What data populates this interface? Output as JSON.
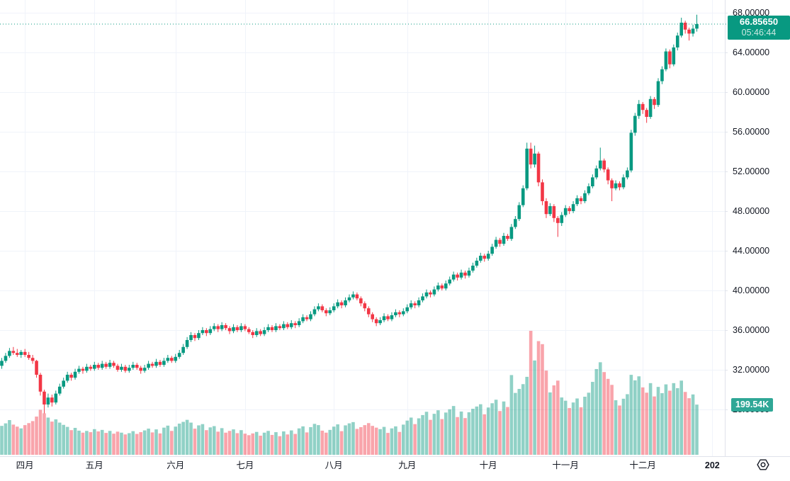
{
  "price_axis": {
    "tick_labels": [
      "68.00000",
      "64.00000",
      "60.00000",
      "56.00000",
      "52.00000",
      "48.00000",
      "44.00000",
      "40.00000",
      "36.00000",
      "32.00000",
      "28.00000"
    ],
    "tick_values": [
      68,
      64,
      60,
      56,
      52,
      48,
      44,
      40,
      36,
      32,
      28
    ],
    "last_price_label": "66.85650",
    "countdown": "05:46:44",
    "volume_label": "199.54K"
  },
  "colors": {
    "up": "#089981",
    "down": "#f23645",
    "volume_up": "rgba(8,153,129,0.45)",
    "volume_down": "rgba(242,54,69,0.45)",
    "grid": "#f0f3fa",
    "separator": "#e0e3eb",
    "axis_text": "#131722",
    "price_line": "#089981",
    "badge_price_bg": "#089981",
    "badge_countdown_text": "#cdeae3",
    "badge_volume_bg": "#2fa796"
  },
  "chart_data": {
    "type": "candlestick",
    "panes": [
      "price",
      "volume"
    ],
    "y_axis": {
      "min": 28,
      "max": 68,
      "tick_step": 4,
      "price_decimals": 5
    },
    "last_price": 66.8565,
    "last_bar_volume_k": 199.54,
    "x_ticks": [
      {
        "label": "四月",
        "index": 6
      },
      {
        "label": "五月",
        "index": 24
      },
      {
        "label": "六月",
        "index": 45
      },
      {
        "label": "七月",
        "index": 63
      },
      {
        "label": "八月",
        "index": 86
      },
      {
        "label": "九月",
        "index": 105
      },
      {
        "label": "十月",
        "index": 126
      },
      {
        "label": "十一月",
        "index": 146
      },
      {
        "label": "十二月",
        "index": 166
      },
      {
        "label": "202",
        "index": 184,
        "bold": true
      }
    ],
    "candles": {
      "columns": [
        "open",
        "high",
        "low",
        "close",
        "volume_k"
      ],
      "rows": [
        [
          32.4,
          33.2,
          32.1,
          32.9,
          115
        ],
        [
          32.9,
          33.7,
          32.7,
          33.4,
          125
        ],
        [
          33.4,
          34.2,
          33.2,
          33.9,
          138
        ],
        [
          33.9,
          34.3,
          33.5,
          33.7,
          120
        ],
        [
          33.7,
          34.1,
          33.3,
          33.5,
          112
        ],
        [
          33.5,
          34.0,
          33.2,
          33.8,
          105
        ],
        [
          33.8,
          34.1,
          33.3,
          33.5,
          118
        ],
        [
          33.5,
          33.8,
          33.0,
          33.2,
          126
        ],
        [
          33.2,
          33.5,
          32.6,
          32.9,
          134
        ],
        [
          32.9,
          33.0,
          31.2,
          31.5,
          152
        ],
        [
          31.5,
          31.7,
          29.4,
          29.8,
          179
        ],
        [
          29.8,
          30.0,
          27.6,
          28.5,
          165
        ],
        [
          28.5,
          29.6,
          28.2,
          29.2,
          148
        ],
        [
          29.2,
          29.5,
          28.3,
          28.7,
          132
        ],
        [
          28.7,
          29.9,
          28.5,
          29.6,
          141
        ],
        [
          29.6,
          30.6,
          29.4,
          30.3,
          128
        ],
        [
          30.3,
          31.2,
          30.1,
          30.9,
          119
        ],
        [
          30.9,
          31.8,
          30.7,
          31.5,
          111
        ],
        [
          31.5,
          31.7,
          30.9,
          31.2,
          98
        ],
        [
          31.2,
          32.1,
          31.0,
          31.8,
          107
        ],
        [
          31.8,
          32.4,
          31.6,
          32.1,
          96
        ],
        [
          32.1,
          32.3,
          31.6,
          31.9,
          88
        ],
        [
          31.9,
          32.6,
          31.7,
          32.3,
          95
        ],
        [
          32.3,
          32.5,
          31.9,
          32.1,
          90
        ],
        [
          32.1,
          32.8,
          31.9,
          32.5,
          102
        ],
        [
          32.5,
          32.7,
          32.0,
          32.2,
          93
        ],
        [
          32.2,
          32.9,
          32.0,
          32.6,
          99
        ],
        [
          32.6,
          32.8,
          32.1,
          32.3,
          87
        ],
        [
          32.3,
          33.0,
          32.1,
          32.7,
          95
        ],
        [
          32.7,
          32.9,
          32.2,
          32.4,
          84
        ],
        [
          32.4,
          32.6,
          31.8,
          32.0,
          92
        ],
        [
          32.0,
          32.6,
          31.8,
          32.3,
          88
        ],
        [
          32.3,
          32.5,
          31.7,
          31.9,
          81
        ],
        [
          31.9,
          32.5,
          31.7,
          32.2,
          86
        ],
        [
          32.2,
          32.8,
          32.0,
          32.5,
          94
        ],
        [
          32.5,
          32.7,
          32.0,
          32.2,
          83
        ],
        [
          32.2,
          32.4,
          31.6,
          31.9,
          90
        ],
        [
          31.9,
          32.5,
          31.7,
          32.2,
          97
        ],
        [
          32.2,
          32.9,
          32.0,
          32.6,
          104
        ],
        [
          32.6,
          32.8,
          32.2,
          32.4,
          89
        ],
        [
          32.4,
          33.1,
          32.2,
          32.8,
          101
        ],
        [
          32.8,
          33.0,
          32.3,
          32.5,
          85
        ],
        [
          32.5,
          33.2,
          32.3,
          32.9,
          108
        ],
        [
          32.9,
          33.5,
          32.7,
          33.2,
          116
        ],
        [
          33.2,
          33.4,
          32.7,
          32.9,
          95
        ],
        [
          32.9,
          33.6,
          32.7,
          33.3,
          112
        ],
        [
          33.3,
          34.0,
          33.1,
          33.7,
          124
        ],
        [
          33.7,
          34.6,
          33.5,
          34.3,
          131
        ],
        [
          34.3,
          35.3,
          34.1,
          35.0,
          139
        ],
        [
          35.0,
          35.8,
          34.8,
          35.5,
          128
        ],
        [
          35.5,
          35.7,
          34.9,
          35.2,
          104
        ],
        [
          35.2,
          36.0,
          35.0,
          35.7,
          117
        ],
        [
          35.7,
          36.3,
          35.5,
          36.0,
          122
        ],
        [
          36.0,
          36.2,
          35.4,
          35.7,
          98
        ],
        [
          35.7,
          36.4,
          35.5,
          36.1,
          109
        ],
        [
          36.1,
          36.7,
          35.9,
          36.4,
          114
        ],
        [
          36.4,
          36.6,
          35.8,
          36.1,
          92
        ],
        [
          36.1,
          36.8,
          35.9,
          36.5,
          106
        ],
        [
          36.5,
          36.7,
          36.0,
          36.2,
          88
        ],
        [
          36.2,
          36.4,
          35.6,
          35.9,
          95
        ],
        [
          35.9,
          36.6,
          35.7,
          36.3,
          101
        ],
        [
          36.3,
          36.5,
          35.8,
          36.0,
          86
        ],
        [
          36.0,
          36.7,
          35.8,
          36.4,
          98
        ],
        [
          36.4,
          36.6,
          35.9,
          36.1,
          84
        ],
        [
          36.1,
          36.3,
          35.6,
          35.8,
          78
        ],
        [
          35.8,
          36.0,
          35.2,
          35.5,
          85
        ],
        [
          35.5,
          36.2,
          35.3,
          35.9,
          91
        ],
        [
          35.9,
          36.1,
          35.4,
          35.6,
          76
        ],
        [
          35.6,
          36.3,
          35.4,
          36.0,
          88
        ],
        [
          36.0,
          36.6,
          35.8,
          36.3,
          95
        ],
        [
          36.3,
          36.5,
          35.8,
          36.0,
          79
        ],
        [
          36.0,
          36.7,
          35.8,
          36.4,
          90
        ],
        [
          36.4,
          36.6,
          36.0,
          36.2,
          74
        ],
        [
          36.2,
          36.9,
          36.0,
          36.6,
          93
        ],
        [
          36.6,
          36.8,
          36.1,
          36.3,
          81
        ],
        [
          36.3,
          37.0,
          36.1,
          36.7,
          97
        ],
        [
          36.7,
          36.9,
          36.2,
          36.5,
          83
        ],
        [
          36.5,
          37.2,
          36.3,
          36.9,
          105
        ],
        [
          36.9,
          37.6,
          36.7,
          37.3,
          113
        ],
        [
          37.3,
          37.5,
          36.9,
          37.1,
          89
        ],
        [
          37.1,
          37.9,
          36.9,
          37.6,
          110
        ],
        [
          37.6,
          38.4,
          37.4,
          38.1,
          123
        ],
        [
          38.1,
          38.7,
          37.9,
          38.4,
          118
        ],
        [
          38.4,
          38.6,
          37.8,
          38.0,
          96
        ],
        [
          38.0,
          38.2,
          37.4,
          37.7,
          88
        ],
        [
          37.7,
          38.3,
          37.5,
          38.0,
          99
        ],
        [
          38.0,
          38.7,
          37.8,
          38.4,
          112
        ],
        [
          38.4,
          39.1,
          38.2,
          38.8,
          121
        ],
        [
          38.8,
          39.0,
          38.2,
          38.5,
          94
        ],
        [
          38.5,
          39.3,
          38.3,
          39.0,
          117
        ],
        [
          39.0,
          39.6,
          38.8,
          39.3,
          125
        ],
        [
          39.3,
          39.9,
          39.1,
          39.6,
          130
        ],
        [
          39.6,
          39.8,
          39.0,
          39.2,
          103
        ],
        [
          39.2,
          39.4,
          38.4,
          38.7,
          110
        ],
        [
          38.7,
          38.9,
          37.9,
          38.2,
          118
        ],
        [
          38.2,
          38.4,
          37.3,
          37.6,
          126
        ],
        [
          37.6,
          37.8,
          36.8,
          37.1,
          115
        ],
        [
          37.1,
          37.3,
          36.4,
          36.7,
          108
        ],
        [
          36.7,
          37.3,
          36.5,
          37.0,
          102
        ],
        [
          37.0,
          37.7,
          36.8,
          37.4,
          111
        ],
        [
          37.4,
          37.6,
          36.9,
          37.1,
          87
        ],
        [
          37.1,
          37.8,
          36.9,
          37.5,
          105
        ],
        [
          37.5,
          38.1,
          37.3,
          37.8,
          113
        ],
        [
          37.8,
          38.0,
          37.3,
          37.6,
          91
        ],
        [
          37.6,
          38.2,
          37.4,
          37.9,
          120
        ],
        [
          37.9,
          38.6,
          37.7,
          38.3,
          136
        ],
        [
          38.3,
          39.0,
          38.1,
          38.7,
          148
        ],
        [
          38.7,
          38.9,
          38.2,
          38.5,
          122
        ],
        [
          38.5,
          39.3,
          38.3,
          39.0,
          145
        ],
        [
          39.0,
          39.7,
          38.8,
          39.4,
          158
        ],
        [
          39.4,
          40.1,
          39.2,
          39.8,
          171
        ],
        [
          39.8,
          40.0,
          39.3,
          39.6,
          139
        ],
        [
          39.6,
          40.4,
          39.4,
          40.1,
          163
        ],
        [
          40.1,
          40.8,
          39.9,
          40.5,
          177
        ],
        [
          40.5,
          40.7,
          40.0,
          40.2,
          142
        ],
        [
          40.2,
          41.0,
          40.0,
          40.7,
          168
        ],
        [
          40.7,
          41.4,
          40.5,
          41.1,
          181
        ],
        [
          41.1,
          41.9,
          40.9,
          41.6,
          194
        ],
        [
          41.6,
          41.8,
          41.0,
          41.3,
          150
        ],
        [
          41.3,
          42.1,
          41.1,
          41.8,
          172
        ],
        [
          41.8,
          42.0,
          41.2,
          41.5,
          146
        ],
        [
          41.5,
          42.3,
          41.3,
          42.0,
          169
        ],
        [
          42.0,
          42.8,
          41.8,
          42.5,
          183
        ],
        [
          42.5,
          43.3,
          42.3,
          43.0,
          192
        ],
        [
          43.0,
          43.8,
          42.8,
          43.5,
          201
        ],
        [
          43.5,
          43.7,
          42.9,
          43.2,
          161
        ],
        [
          43.2,
          44.0,
          43.0,
          43.7,
          188
        ],
        [
          43.7,
          44.7,
          43.5,
          44.4,
          205
        ],
        [
          44.4,
          45.4,
          44.2,
          45.1,
          219
        ],
        [
          45.1,
          45.3,
          44.4,
          44.7,
          174
        ],
        [
          44.7,
          45.8,
          44.5,
          45.5,
          212
        ],
        [
          45.5,
          45.7,
          45.0,
          45.2,
          190
        ],
        [
          45.2,
          46.7,
          45.0,
          46.4,
          317
        ],
        [
          46.4,
          47.5,
          46.2,
          47.2,
          246
        ],
        [
          47.2,
          48.9,
          47.0,
          48.6,
          262
        ],
        [
          48.6,
          50.6,
          48.4,
          50.3,
          281
        ],
        [
          50.3,
          54.9,
          50.1,
          54.3,
          310
        ],
        [
          54.3,
          54.9,
          52.3,
          52.7,
          493
        ],
        [
          52.7,
          54.6,
          52.4,
          53.8,
          375
        ],
        [
          53.8,
          54.0,
          50.5,
          50.9,
          452
        ],
        [
          50.9,
          51.2,
          48.6,
          49.0,
          440
        ],
        [
          49.0,
          49.3,
          47.3,
          47.7,
          335
        ],
        [
          47.7,
          48.8,
          47.5,
          48.5,
          248
        ],
        [
          48.5,
          48.7,
          46.9,
          47.3,
          276
        ],
        [
          47.3,
          47.5,
          45.4,
          46.8,
          295
        ],
        [
          46.8,
          47.9,
          46.5,
          47.6,
          228
        ],
        [
          47.6,
          48.6,
          47.4,
          48.3,
          215
        ],
        [
          48.3,
          48.5,
          47.7,
          48.0,
          186
        ],
        [
          48.0,
          49.0,
          47.8,
          48.7,
          208
        ],
        [
          48.7,
          49.6,
          48.5,
          49.3,
          224
        ],
        [
          49.3,
          49.5,
          48.7,
          49.0,
          189
        ],
        [
          49.0,
          50.1,
          48.8,
          49.8,
          231
        ],
        [
          49.8,
          50.8,
          49.6,
          50.5,
          247
        ],
        [
          50.5,
          51.7,
          50.3,
          51.4,
          290
        ],
        [
          51.4,
          52.6,
          51.2,
          52.3,
          341
        ],
        [
          52.3,
          54.4,
          52.1,
          53.1,
          368
        ],
        [
          53.1,
          53.3,
          51.9,
          52.2,
          329
        ],
        [
          52.2,
          52.4,
          50.7,
          51.1,
          302
        ],
        [
          51.1,
          51.3,
          49.0,
          50.3,
          278
        ],
        [
          50.3,
          51.1,
          50.1,
          50.8,
          217
        ],
        [
          50.8,
          51.0,
          50.1,
          50.4,
          196
        ],
        [
          50.4,
          51.7,
          50.2,
          51.4,
          223
        ],
        [
          51.4,
          52.4,
          51.2,
          52.1,
          241
        ],
        [
          52.1,
          56.2,
          51.9,
          55.9,
          318
        ],
        [
          55.9,
          57.9,
          55.6,
          57.6,
          296
        ],
        [
          57.6,
          59.2,
          57.3,
          58.8,
          312
        ],
        [
          58.8,
          59.0,
          57.8,
          58.2,
          268
        ],
        [
          58.2,
          58.4,
          56.9,
          57.5,
          247
        ],
        [
          57.5,
          59.6,
          57.3,
          59.3,
          285
        ],
        [
          59.3,
          59.5,
          58.3,
          58.7,
          232
        ],
        [
          58.7,
          61.4,
          58.5,
          61.1,
          270
        ],
        [
          61.1,
          62.6,
          60.8,
          62.3,
          245
        ],
        [
          62.3,
          64.4,
          62.1,
          64.1,
          280
        ],
        [
          64.1,
          64.3,
          62.4,
          62.8,
          255
        ],
        [
          62.8,
          64.8,
          62.6,
          64.5,
          285
        ],
        [
          64.5,
          66.0,
          64.2,
          65.7,
          265
        ],
        [
          65.7,
          67.5,
          65.5,
          67.0,
          295
        ],
        [
          67.0,
          67.2,
          65.9,
          66.3,
          250
        ],
        [
          66.3,
          66.5,
          65.2,
          65.9,
          225
        ],
        [
          65.9,
          66.8,
          65.6,
          66.4,
          240
        ],
        [
          66.4,
          67.8,
          66.1,
          66.8565,
          199.54
        ]
      ]
    }
  }
}
